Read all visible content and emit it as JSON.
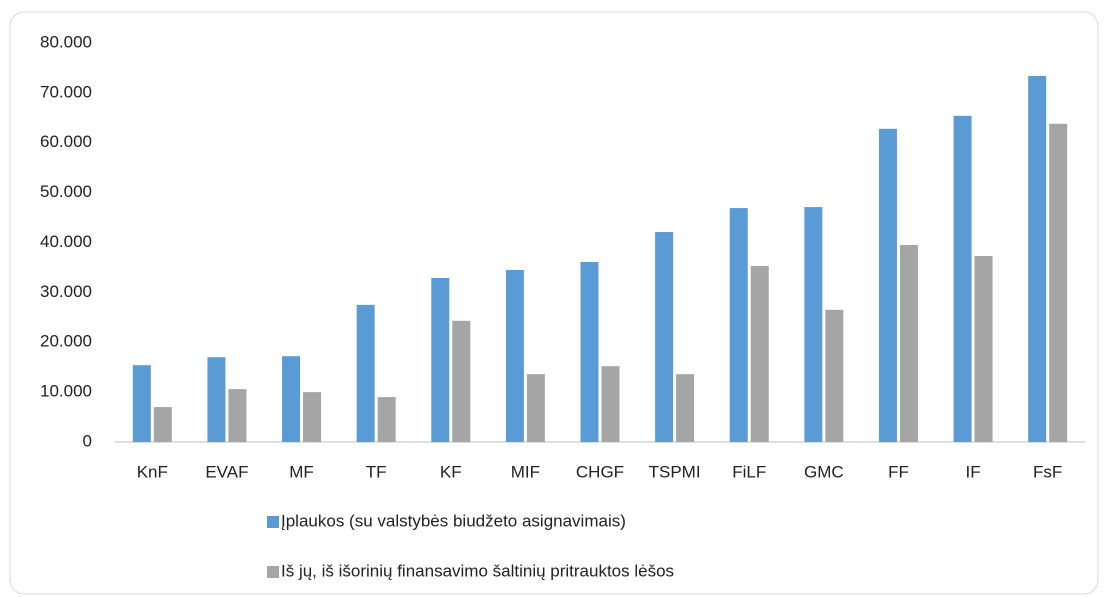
{
  "chart_data": {
    "type": "bar",
    "categories": [
      "KnF",
      "EVAF",
      "MF",
      "TF",
      "KF",
      "MIF",
      "CHGF",
      "TSPMI",
      "FiLF",
      "GMC",
      "FF",
      "IF",
      "FsF"
    ],
    "series": [
      {
        "name": "Įplaukos (su valstybės biudžeto asignavimais)",
        "color": "#5b9bd5",
        "values": [
          15400,
          17000,
          17200,
          27500,
          32900,
          34500,
          36100,
          42100,
          46900,
          47100,
          62800,
          65400,
          73400
        ]
      },
      {
        "name": "Iš jų, iš išorinių finansavimo šaltinių pritrauktos lėšos",
        "color": "#a5a5a5",
        "values": [
          7000,
          10600,
          10000,
          9000,
          24300,
          13600,
          15200,
          13600,
          35300,
          26500,
          39500,
          37300,
          63800
        ]
      }
    ],
    "ylim": [
      0,
      80000
    ],
    "yticks": [
      0,
      {
        "value": 10000,
        "label": "10.000"
      },
      {
        "value": 20000,
        "label": "20.000"
      },
      {
        "value": 30000,
        "label": "30.000"
      },
      {
        "value": 40000,
        "label": "40.000"
      },
      {
        "value": 50000,
        "label": "50.000"
      },
      {
        "value": 60000,
        "label": "60.000"
      },
      {
        "value": 70000,
        "label": "70.000"
      },
      {
        "value": 80000,
        "label": "80.000"
      }
    ],
    "grid": false,
    "legend": "bottom"
  }
}
